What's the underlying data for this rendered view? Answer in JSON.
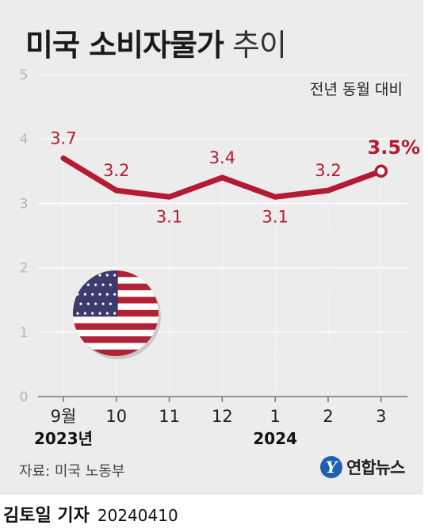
{
  "header": {
    "title_bold": "미국 소비자물가",
    "title_light": "추이",
    "subtitle": "전년 동월 대비"
  },
  "footer": {
    "source": "자료: 미국 노동부",
    "logo_mark": "Y",
    "logo_text": "연합뉴스"
  },
  "credit": {
    "author": "김토일 기자",
    "date": "20240410"
  },
  "icons": {
    "flag": "us-flag-icon",
    "logo": "yonhap-logo-icon"
  },
  "colors": {
    "line": "#b41b32",
    "label": "#b41b32",
    "background": "#ececec",
    "grid": "#ffffff"
  },
  "chart_data": {
    "type": "line",
    "categories": [
      "9월",
      "10",
      "11",
      "12",
      "1",
      "2",
      "3"
    ],
    "year_labels": [
      "2023년",
      "",
      "",
      "",
      "2024",
      "",
      ""
    ],
    "values": [
      3.7,
      3.2,
      3.1,
      3.4,
      3.1,
      3.2,
      3.5
    ],
    "point_labels": [
      "3.7",
      "3.2",
      "3.1",
      "3.4",
      "3.1",
      "3.2",
      "3.5%"
    ],
    "yticks": [
      "0",
      "1",
      "2",
      "3",
      "4",
      "5"
    ],
    "ylim": [
      0,
      5
    ],
    "grid": true,
    "highlight_last": true
  }
}
